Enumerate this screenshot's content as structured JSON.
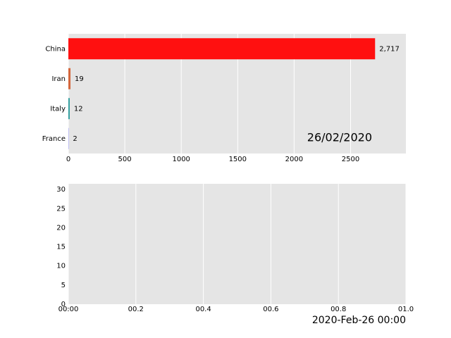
{
  "chart_data": [
    {
      "type": "barh",
      "categories": [
        "China",
        "Iran",
        "Italy",
        "France"
      ],
      "values": [
        2717,
        19,
        12,
        2
      ],
      "value_labels": [
        "2,717",
        "19",
        "12",
        "2"
      ],
      "colors": [
        "#ff1010",
        "#d4663c",
        "#2f9e9e",
        "#9a9aff"
      ],
      "xlim": [
        0,
        2990
      ],
      "xticks": [
        0,
        500,
        1000,
        1500,
        2000,
        2500
      ],
      "grid": true,
      "annotation": "26/02/2020"
    },
    {
      "type": "line",
      "xlim": [
        0,
        1
      ],
      "xticks": [
        {
          "value": 0,
          "label": "00:00"
        },
        {
          "value": 0.2,
          "label": "00.2"
        },
        {
          "value": 0.4,
          "label": "00.4"
        },
        {
          "value": 0.6,
          "label": "00.6"
        },
        {
          "value": 0.8,
          "label": "00.8"
        },
        {
          "value": 1,
          "label": "01.0"
        }
      ],
      "ylim": [
        0,
        31.5
      ],
      "yticks": [
        0,
        5,
        10,
        15,
        20,
        25,
        30
      ],
      "grid": true,
      "annotation": "2020-Feb-26 00:00"
    }
  ]
}
